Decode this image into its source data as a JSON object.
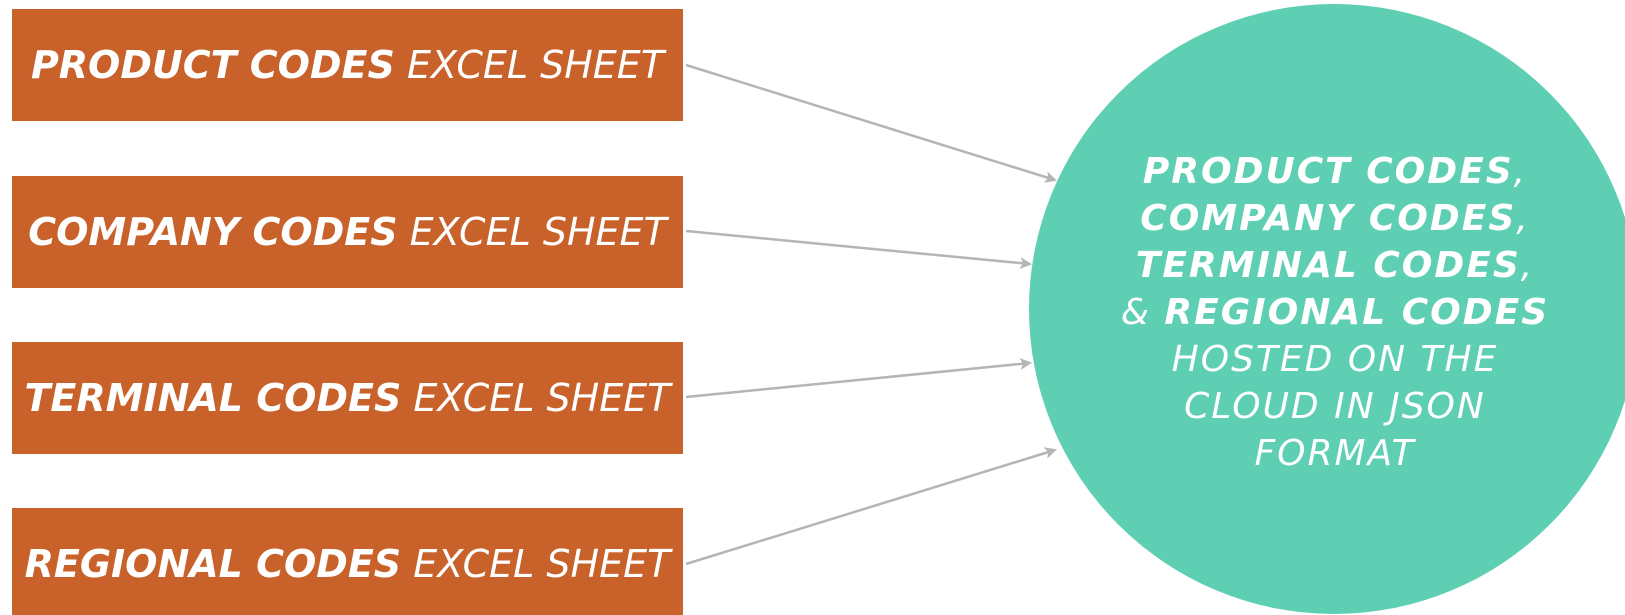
{
  "sources": [
    {
      "bold": "PRODUCT CODES",
      "rest": " EXCEL SHEET"
    },
    {
      "bold": "COMPANY CODES",
      "rest": " EXCEL SHEET"
    },
    {
      "bold": "TERMINAL CODES",
      "rest": " EXCEL SHEET"
    },
    {
      "bold": "REGIONAL CODES",
      "rest": " EXCEL SHEET"
    }
  ],
  "target": {
    "line1_bold": "PRODUCT CODES",
    "line1_rest": ",",
    "line2_bold": "COMPANY CODES",
    "line2_rest": ",",
    "line3_bold": "TERMINAL CODES",
    "line3_rest": ",",
    "line4_prefix": "& ",
    "line4_bold": "REGIONAL CODES",
    "line5": "HOSTED ON THE",
    "line6": "CLOUD IN JSON",
    "line7": "FORMAT"
  },
  "colors": {
    "box_fill": "#c8622a",
    "circle_fill": "#5ecfb3",
    "arrow": "#b5b5b5",
    "text": "#ffffff"
  }
}
